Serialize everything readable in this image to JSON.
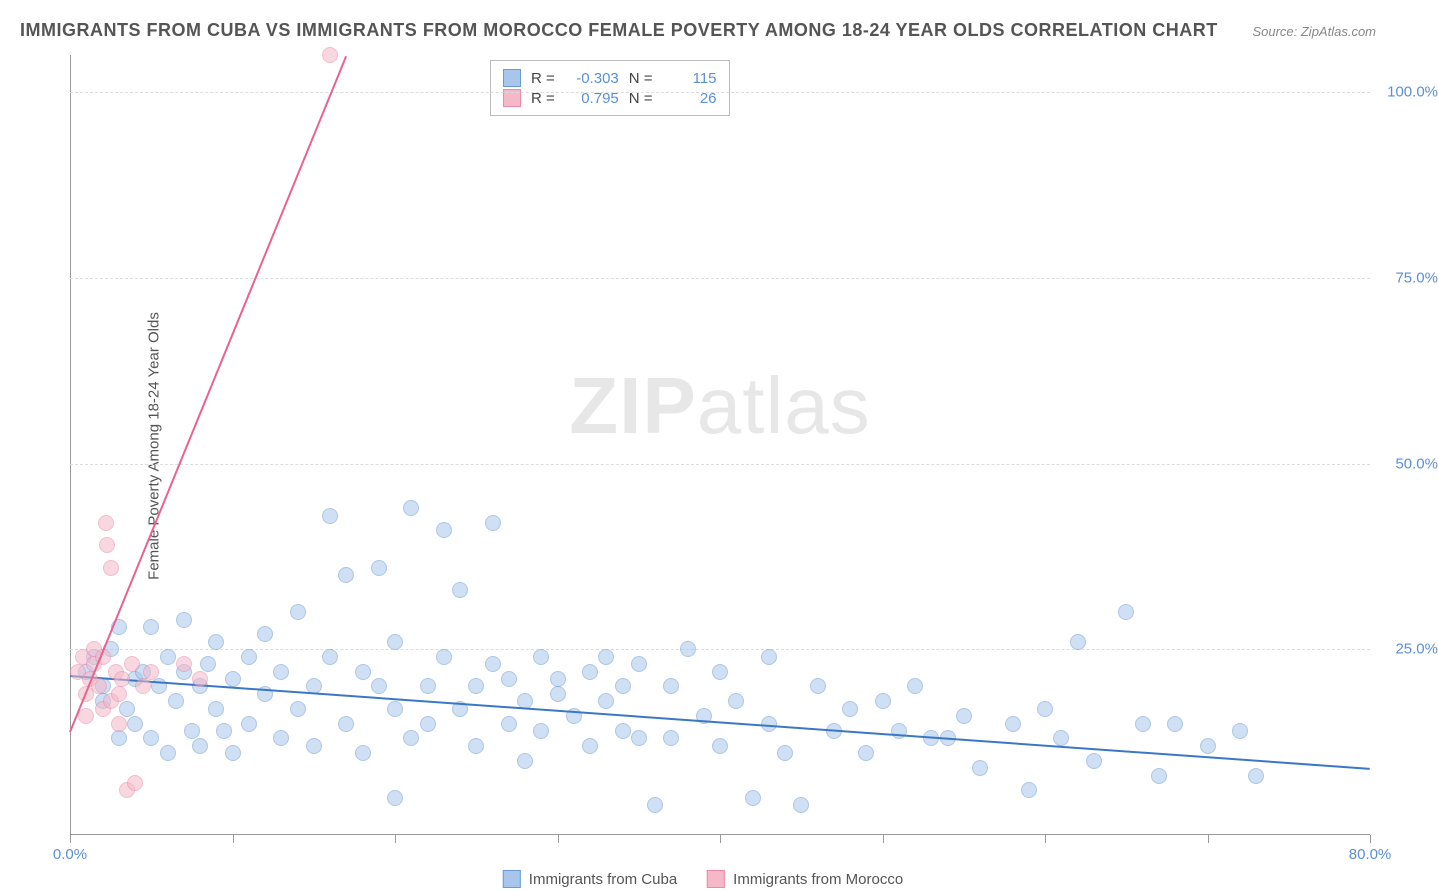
{
  "title": "IMMIGRANTS FROM CUBA VS IMMIGRANTS FROM MOROCCO FEMALE POVERTY AMONG 18-24 YEAR OLDS CORRELATION CHART",
  "source": "Source: ZipAtlas.com",
  "ylabel": "Female Poverty Among 18-24 Year Olds",
  "watermark_a": "ZIP",
  "watermark_b": "atlas",
  "chart": {
    "type": "scatter",
    "xlim": [
      0,
      80
    ],
    "ylim": [
      0,
      105
    ],
    "xtick_positions": [
      0,
      10,
      20,
      30,
      40,
      50,
      60,
      70,
      80
    ],
    "xtick_labels": {
      "0": "0.0%",
      "80": "80.0%"
    },
    "ytick_positions": [
      25,
      50,
      75,
      100
    ],
    "ytick_labels": {
      "25": "25.0%",
      "50": "50.0%",
      "75": "75.0%",
      "100": "100.0%"
    },
    "background_color": "#ffffff",
    "grid_color": "#dddddd",
    "axis_color": "#999999",
    "tick_label_color": "#5b8fd6",
    "point_radius": 8,
    "point_opacity": 0.55,
    "trend_width": 2
  },
  "series": [
    {
      "name": "Immigrants from Cuba",
      "color_fill": "#a8c6ec",
      "color_stroke": "#6b9bd1",
      "trend_color": "#3b78c4",
      "R": "-0.303",
      "N": "115",
      "trend": {
        "x1": 0,
        "y1": 21.5,
        "x2": 80,
        "y2": 9
      },
      "points": [
        [
          1,
          22
        ],
        [
          1.5,
          24
        ],
        [
          2,
          18
        ],
        [
          2,
          20
        ],
        [
          2.5,
          25
        ],
        [
          3,
          13
        ],
        [
          3,
          28
        ],
        [
          3.5,
          17
        ],
        [
          4,
          21
        ],
        [
          4,
          15
        ],
        [
          4.5,
          22
        ],
        [
          5,
          28
        ],
        [
          5,
          13
        ],
        [
          5.5,
          20
        ],
        [
          6,
          24
        ],
        [
          6,
          11
        ],
        [
          6.5,
          18
        ],
        [
          7,
          22
        ],
        [
          7,
          29
        ],
        [
          7.5,
          14
        ],
        [
          8,
          20
        ],
        [
          8,
          12
        ],
        [
          8.5,
          23
        ],
        [
          9,
          17
        ],
        [
          9,
          26
        ],
        [
          9.5,
          14
        ],
        [
          10,
          21
        ],
        [
          10,
          11
        ],
        [
          11,
          24
        ],
        [
          11,
          15
        ],
        [
          12,
          19
        ],
        [
          12,
          27
        ],
        [
          13,
          13
        ],
        [
          13,
          22
        ],
        [
          14,
          17
        ],
        [
          14,
          30
        ],
        [
          15,
          20
        ],
        [
          15,
          12
        ],
        [
          16,
          24
        ],
        [
          16,
          43
        ],
        [
          17,
          15
        ],
        [
          17,
          35
        ],
        [
          18,
          22
        ],
        [
          18,
          11
        ],
        [
          19,
          20
        ],
        [
          19,
          36
        ],
        [
          20,
          17
        ],
        [
          20,
          26
        ],
        [
          21,
          13
        ],
        [
          21,
          44
        ],
        [
          22,
          20
        ],
        [
          22,
          15
        ],
        [
          23,
          24
        ],
        [
          23,
          41
        ],
        [
          24,
          17
        ],
        [
          24,
          33
        ],
        [
          25,
          20
        ],
        [
          25,
          12
        ],
        [
          26,
          23
        ],
        [
          26,
          42
        ],
        [
          27,
          15
        ],
        [
          27,
          21
        ],
        [
          28,
          18
        ],
        [
          28,
          10
        ],
        [
          29,
          24
        ],
        [
          29,
          14
        ],
        [
          30,
          21
        ],
        [
          30,
          19
        ],
        [
          20,
          5
        ],
        [
          31,
          16
        ],
        [
          32,
          22
        ],
        [
          32,
          12
        ],
        [
          33,
          18
        ],
        [
          33,
          24
        ],
        [
          34,
          14
        ],
        [
          34,
          20
        ],
        [
          35,
          13
        ],
        [
          35,
          23
        ],
        [
          36,
          4
        ],
        [
          37,
          20
        ],
        [
          37,
          13
        ],
        [
          38,
          25
        ],
        [
          39,
          16
        ],
        [
          40,
          22
        ],
        [
          40,
          12
        ],
        [
          41,
          18
        ],
        [
          42,
          5
        ],
        [
          43,
          15
        ],
        [
          43,
          24
        ],
        [
          44,
          11
        ],
        [
          45,
          4
        ],
        [
          46,
          20
        ],
        [
          47,
          14
        ],
        [
          48,
          17
        ],
        [
          49,
          11
        ],
        [
          50,
          18
        ],
        [
          51,
          14
        ],
        [
          52,
          20
        ],
        [
          54,
          13
        ],
        [
          55,
          16
        ],
        [
          56,
          9
        ],
        [
          58,
          15
        ],
        [
          59,
          6
        ],
        [
          60,
          17
        ],
        [
          61,
          13
        ],
        [
          62,
          26
        ],
        [
          63,
          10
        ],
        [
          65,
          30
        ],
        [
          67,
          8
        ],
        [
          68,
          15
        ],
        [
          70,
          12
        ],
        [
          72,
          14
        ],
        [
          73,
          8
        ],
        [
          66,
          15
        ],
        [
          53,
          13
        ]
      ]
    },
    {
      "name": "Immigrants from Morocco",
      "color_fill": "#f4b8c8",
      "color_stroke": "#e88aa8",
      "trend_color": "#e8638f",
      "R": "0.795",
      "N": "26",
      "trend": {
        "x1": 0,
        "y1": 14,
        "x2": 17,
        "y2": 105
      },
      "points": [
        [
          0.5,
          22
        ],
        [
          0.8,
          24
        ],
        [
          1,
          16
        ],
        [
          1,
          19
        ],
        [
          1.2,
          21
        ],
        [
          1.5,
          23
        ],
        [
          1.5,
          25
        ],
        [
          1.8,
          20
        ],
        [
          2,
          17
        ],
        [
          2,
          24
        ],
        [
          2.2,
          42
        ],
        [
          2.3,
          39
        ],
        [
          2.5,
          36
        ],
        [
          2.5,
          18
        ],
        [
          2.8,
          22
        ],
        [
          3,
          15
        ],
        [
          3,
          19
        ],
        [
          3.2,
          21
        ],
        [
          3.5,
          6
        ],
        [
          3.8,
          23
        ],
        [
          4,
          7
        ],
        [
          4.5,
          20
        ],
        [
          5,
          22
        ],
        [
          7,
          23
        ],
        [
          8,
          21
        ],
        [
          16,
          105
        ]
      ]
    }
  ],
  "legend_stats_labels": {
    "R": "R =",
    "N": "N ="
  },
  "legend_bottom": [
    "Immigrants from Cuba",
    "Immigrants from Morocco"
  ]
}
